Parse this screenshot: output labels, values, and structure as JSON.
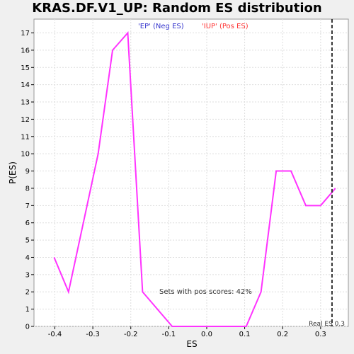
{
  "chart_data": {
    "type": "line",
    "title": "KRAS.DF.V1_UP: Random ES distribution",
    "xlabel": "ES",
    "ylabel": "P(ES)",
    "xlim": [
      -0.455,
      0.373
    ],
    "ylim": [
      0,
      17.8
    ],
    "x_ticks": [
      -0.4,
      -0.3,
      -0.2,
      -0.1,
      0.0,
      0.1,
      0.2,
      0.3
    ],
    "x_tick_labels": [
      "-0.4",
      "-0.3",
      "-0.2",
      "-0.1",
      "0.0",
      "0.1",
      "0.2",
      "0.3"
    ],
    "y_ticks": [
      0,
      1,
      2,
      3,
      4,
      5,
      6,
      7,
      8,
      9,
      10,
      11,
      12,
      13,
      14,
      15,
      16,
      17
    ],
    "y_tick_labels": [
      "0",
      "1",
      "2",
      "3",
      "4",
      "5",
      "6",
      "7",
      "8",
      "9",
      "10",
      "11",
      "12",
      "13",
      "14",
      "15",
      "16",
      "17"
    ],
    "grid": true,
    "series": [
      {
        "color": "#ff33ff",
        "x": [
          -0.402,
          -0.364,
          -0.286,
          -0.248,
          -0.208,
          -0.169,
          -0.091,
          -0.052,
          -0.013,
          0.026,
          0.065,
          0.104,
          0.143,
          0.183,
          0.222,
          0.261,
          0.3,
          0.339
        ],
        "y": [
          4,
          2,
          10,
          16,
          17,
          2,
          0,
          0,
          0,
          0,
          0,
          0,
          2,
          9,
          9,
          7,
          7,
          8
        ]
      }
    ],
    "legend": [
      {
        "label": "'EP' (Neg ES)",
        "color": "#3333cc"
      },
      {
        "label": "'IUP' (Pos ES)",
        "color": "#ff3333"
      }
    ],
    "annotations": {
      "pos_scores": "Sets with pos scores: 42%",
      "real_es_label": "Real ES 0.3",
      "real_es_value": 0.33
    }
  }
}
